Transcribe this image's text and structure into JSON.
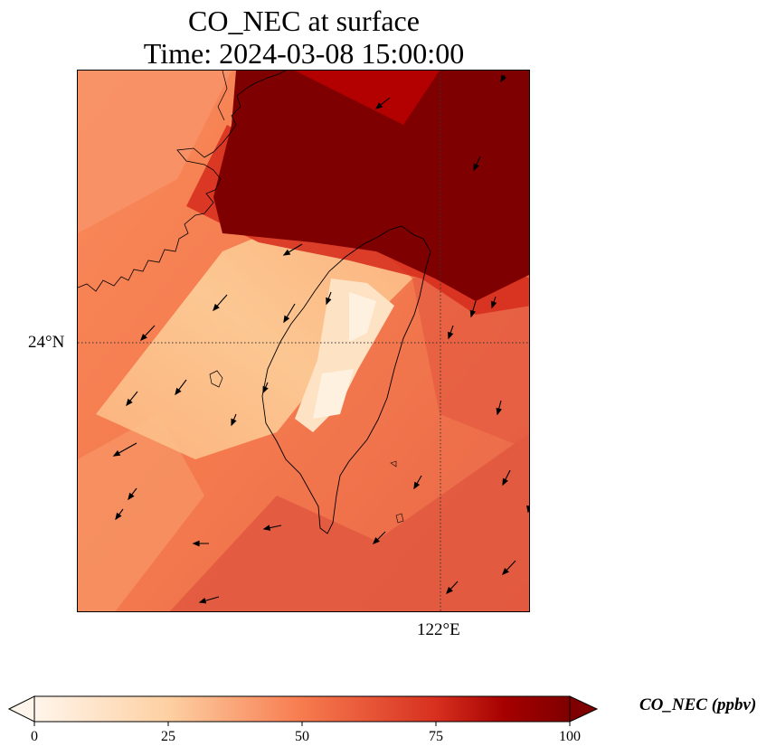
{
  "title_line1": "CO_NEC at surface",
  "title_line2": "Time: 2024-03-08 15:00:00",
  "lat_label": "24°N",
  "lon_label": "122°E",
  "colorbar": {
    "label": "CO_NEC (ppbv)",
    "ticks": [
      "0",
      "25",
      "50",
      "75",
      "100"
    ],
    "colors": [
      "#fff5eb",
      "#fdd0a2",
      "#fb8c4c",
      "#d73027",
      "#bd0026",
      "#7f0000"
    ]
  },
  "map": {
    "colormap": "OrRd-like (white → orange → dark red)",
    "coastline_color": "#000000",
    "gridline_style": "dotted",
    "features": [
      "Taiwan coastline",
      "Fujian coastline",
      "wind vectors",
      "CO concentration field"
    ]
  }
}
